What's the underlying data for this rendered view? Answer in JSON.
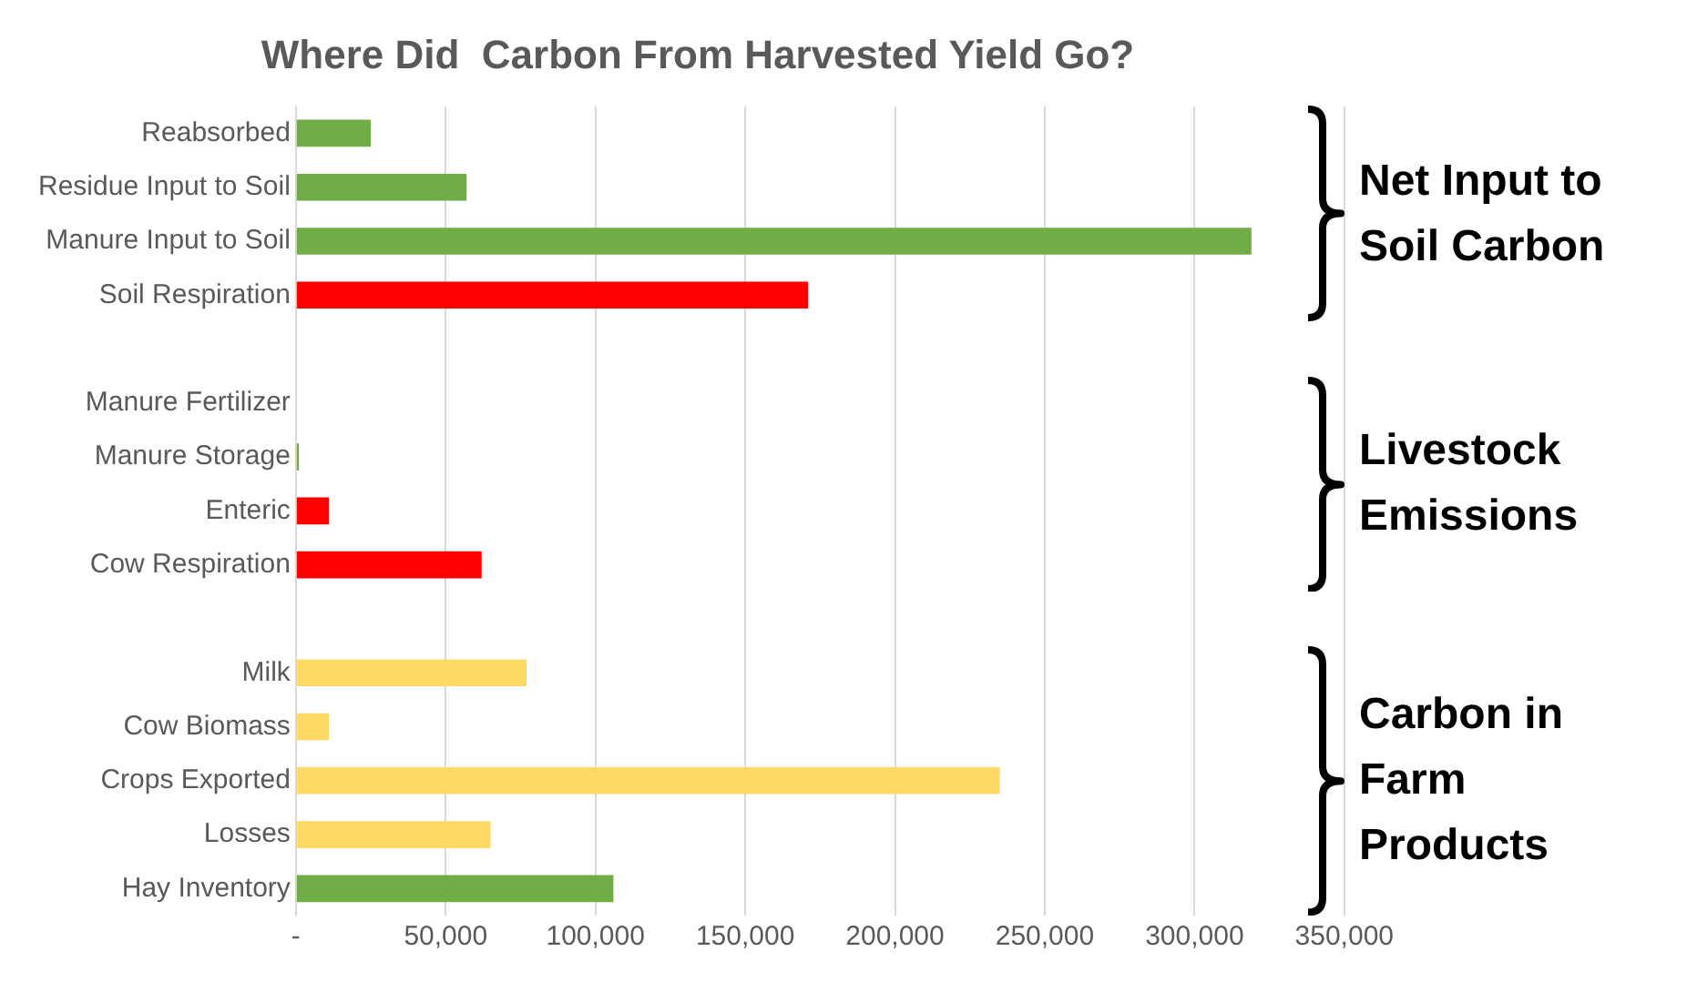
{
  "chart_data": {
    "type": "bar",
    "orientation": "horizontal",
    "title": "Where Did  Carbon From Harvested Yield Go?",
    "categories": [
      "Reabsorbed",
      "Residue Input to Soil",
      "Manure Input to Soil",
      "Soil Respiration",
      null,
      "Manure Fertilizer",
      "Manure Storage",
      "Enteric",
      "Cow Respiration",
      null,
      "Milk",
      "Cow Biomass",
      "Crops Exported",
      "Losses",
      "Hay Inventory"
    ],
    "values": [
      25000,
      57000,
      319000,
      171000,
      null,
      0,
      1000,
      11000,
      62000,
      null,
      77000,
      11000,
      235000,
      65000,
      106000
    ],
    "colors": [
      "#70ad47",
      "#70ad47",
      "#70ad47",
      "#ff0000",
      "#70ad47",
      "#70ad47",
      "#70ad47",
      "#ff0000",
      "#ff0000",
      "#ffd966",
      "#ffd966",
      "#ffd966",
      "#ffd966",
      "#ffd966",
      "#70ad47"
    ],
    "xlim": [
      0,
      350000
    ],
    "xticks": [
      {
        "value": 0,
        "label": "-"
      },
      {
        "value": 50000,
        "label": "50,000"
      },
      {
        "value": 100000,
        "label": "100,000"
      },
      {
        "value": 150000,
        "label": "150,000"
      },
      {
        "value": 200000,
        "label": "200,000"
      },
      {
        "value": 250000,
        "label": "250,000"
      },
      {
        "value": 300000,
        "label": "300,000"
      },
      {
        "value": 350000,
        "label": "350,000"
      }
    ],
    "grid": "x",
    "legend": false,
    "annotations": [
      "Net Input to Soil Carbon",
      "Livestock Emissions",
      "Carbon in Farm Products"
    ]
  }
}
